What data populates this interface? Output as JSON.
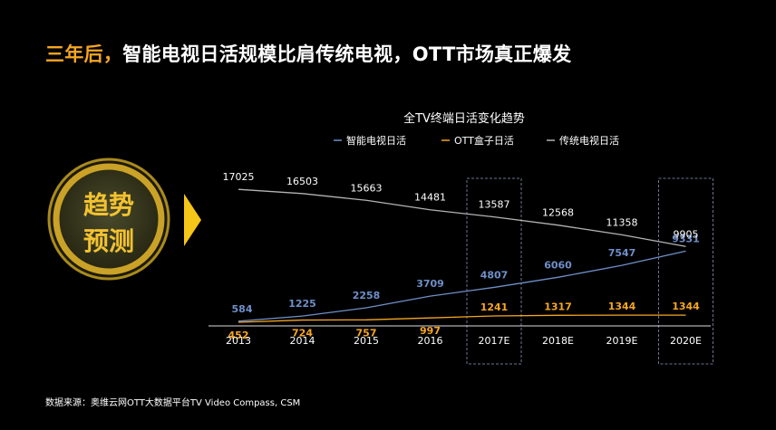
{
  "headline": {
    "accent": "三年后，",
    "rest": "智能电视日活规模比肩传统电视，OTT市场真正爆发"
  },
  "badge": {
    "line1": "趋势",
    "line2": "预测"
  },
  "source": "数据来源：奥维云网OTT大数据平台TV Video Compass, CSM",
  "colors": {
    "smart": "#6f8fc8",
    "ott": "#f5a623",
    "traditional": "#b3b3b3",
    "axis": "#dddddd",
    "badge_ring": "#c9a227"
  },
  "chart_data": {
    "type": "line",
    "title": "全TV终端日活变化趋势",
    "categories": [
      "2013",
      "2014",
      "2015",
      "2016",
      "2017E",
      "2018E",
      "2019E",
      "2020E"
    ],
    "series": [
      {
        "name": "智能电视日活",
        "color": "#6f8fc8",
        "values": [
          584,
          1225,
          2258,
          3709,
          4807,
          6060,
          7547,
          9331
        ]
      },
      {
        "name": "OTT盒子日活",
        "color": "#f5a623",
        "values": [
          452,
          724,
          757,
          997,
          1241,
          1317,
          1344,
          1344
        ]
      },
      {
        "name": "传统电视日活",
        "color": "#b3b3b3",
        "values": [
          17025,
          16503,
          15663,
          14481,
          13587,
          12568,
          11358,
          9905
        ]
      }
    ],
    "highlighted_categories": [
      "2017E",
      "2020E"
    ],
    "legend_position": "top",
    "grid": false
  }
}
